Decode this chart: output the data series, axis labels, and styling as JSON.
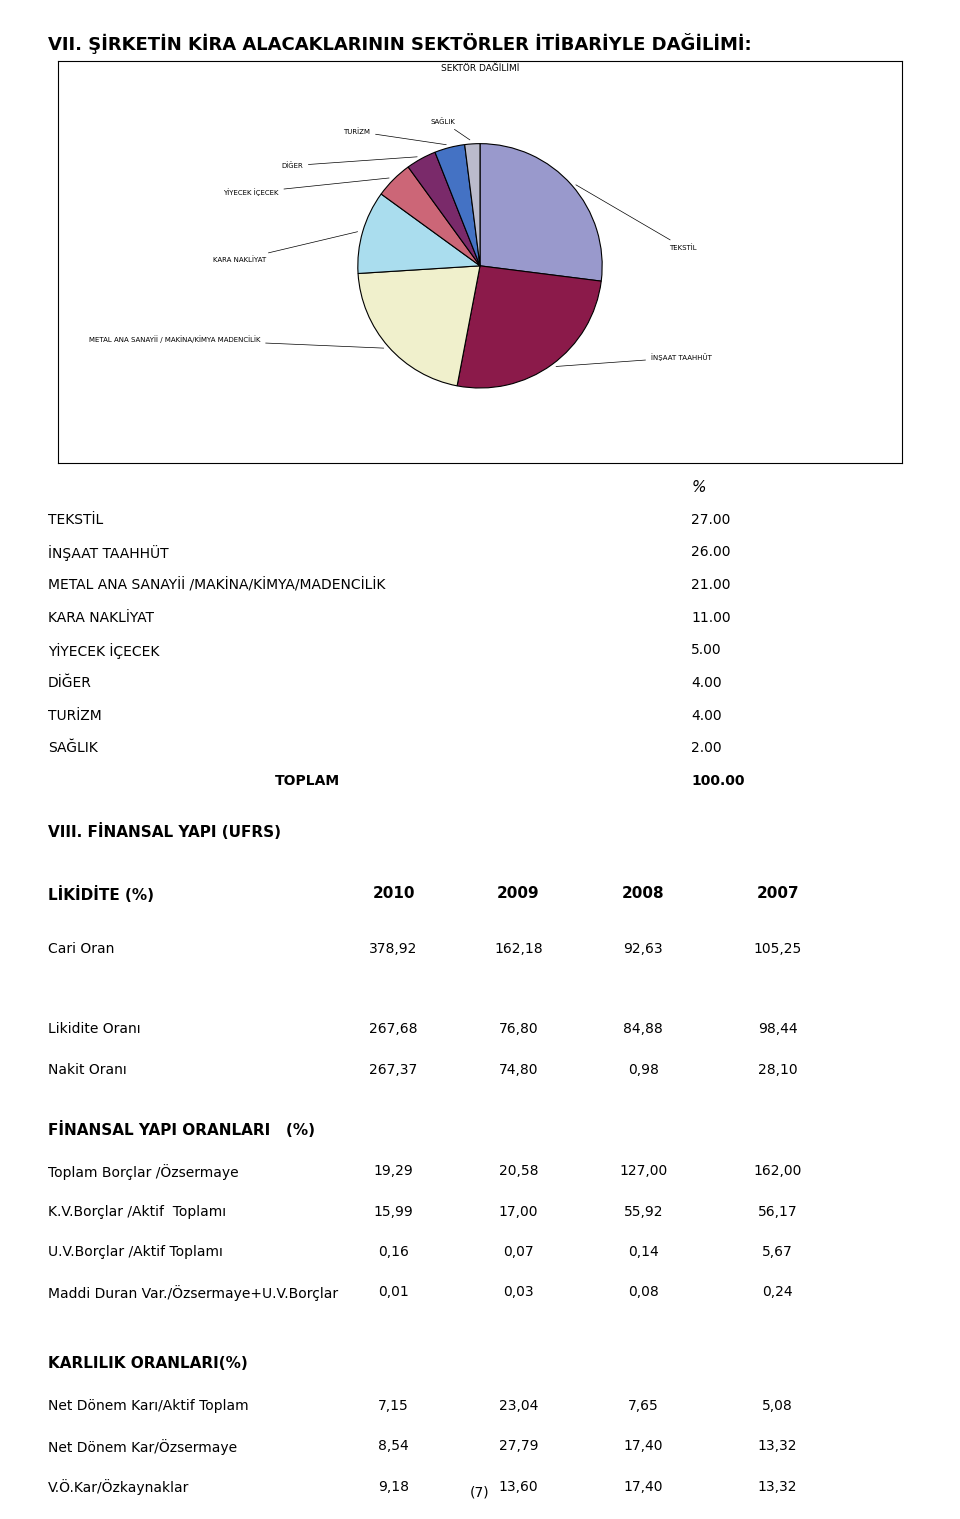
{
  "title": "VII. ŞİRKETİN KİRA ALACAKLARININ SEKTÖRLER İTİBARİYLE DAĞİLİMİ:",
  "pie_values": [
    27,
    26,
    21,
    11,
    5,
    4,
    4,
    2
  ],
  "pie_colors": [
    "#9999cc",
    "#8b1a4a",
    "#f0f0cc",
    "#aaddee",
    "#cc6677",
    "#7a2a6a",
    "#4472c4",
    "#bbbbcc"
  ],
  "pie_chart_title": "SEKTÖR DAĞİLİMİ",
  "pie_label_names": [
    "TEKSTİL",
    "İNŞAAT TAAHHÜT",
    "METAL ANA SANAYİİ / MAKİNA/KİMYA MADENCİLİK",
    "KARA NAKLİYAT",
    "YİYECEK İÇECEK",
    "DİĞER",
    "TURİZM",
    "SAĞLIK"
  ],
  "table_percent_header": "%",
  "table_rows": [
    [
      "TEKSTİL",
      "27.00"
    ],
    [
      "İNŞAAT TAAHHÜT",
      "26.00"
    ],
    [
      "METAL ANA SANAYİİ /MAKİNA/KİMYA/MADENCİLİK",
      "21.00"
    ],
    [
      "KARA NAKLİYAT",
      "11.00"
    ],
    [
      "YİYECEK İÇECEK",
      "5.00"
    ],
    [
      "DİĞER",
      "4.00"
    ],
    [
      "TURİZM",
      "4.00"
    ],
    [
      "SAĞLIK",
      "2.00"
    ]
  ],
  "table_total_label": "TOPLAM",
  "table_total_value": "100.00",
  "section_title": "VIII. FİNANSAL YAPI (UFRS)",
  "likidite_header": "LİKİDİTE (%)",
  "years": [
    "2010",
    "2009",
    "2008",
    "2007"
  ],
  "likidite_rows": [
    [
      "Cari Oran",
      "378,92",
      "162,18",
      "92,63",
      "105,25"
    ],
    [
      "",
      "",
      "",
      "",
      ""
    ],
    [
      "Likidite Oranı",
      "267,68",
      "76,80",
      "84,88",
      "98,44"
    ],
    [
      "Nakit Oranı",
      "267,37",
      "74,80",
      "0,98",
      "28,10"
    ]
  ],
  "finansal_header": "FİNANSAL YAPI ORANLARI   (%)",
  "finansal_rows": [
    [
      "Toplam Borçlar /Özsermaye",
      "19,29",
      "20,58",
      "127,00",
      "162,00"
    ],
    [
      "K.V.Borçlar /Aktif  Toplamı",
      "15,99",
      "17,00",
      "55,92",
      "56,17"
    ],
    [
      "U.V.Borçlar /Aktif Toplamı",
      "0,16",
      "0,07",
      "0,14",
      "5,67"
    ],
    [
      "Maddi Duran Var./Özsermaye+U.V.Borçlar",
      "0,01",
      "0,03",
      "0,08",
      "0,24"
    ]
  ],
  "karlilik_header": "KARLILIK ORANLARI(%)",
  "karlilik_rows": [
    [
      "Net Dönem Karı/Aktif Toplam",
      "7,15",
      "23,04",
      "7,65",
      "5,08"
    ],
    [
      "Net Dönem Kar/Özsermaye",
      "8,54",
      "27,79",
      "17,40",
      "13,32"
    ],
    [
      "V.Ö.Kar/Özkaynaklar",
      "9,18",
      "13,60",
      "17,40",
      "13,32"
    ]
  ],
  "page_number": "(7)"
}
